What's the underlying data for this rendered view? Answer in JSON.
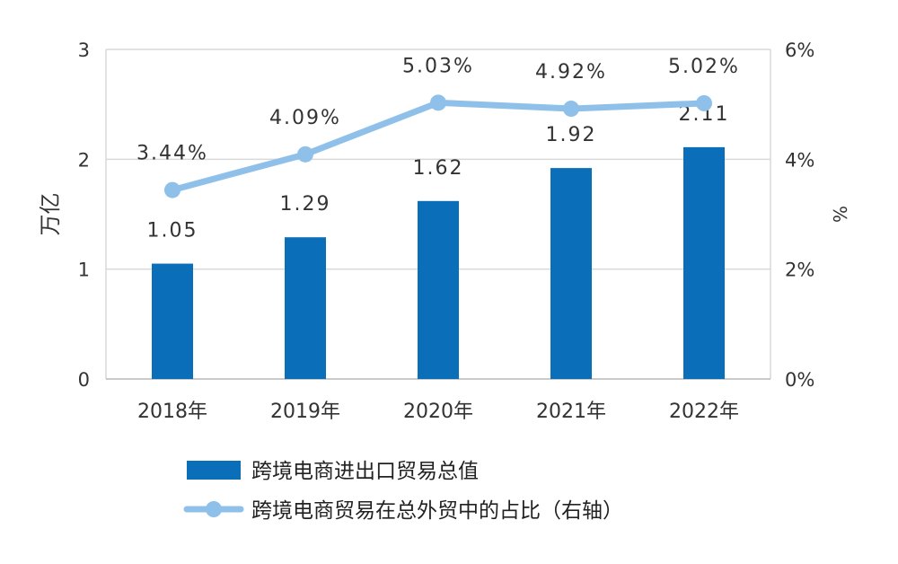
{
  "chart_data": {
    "type": "bar",
    "categories": [
      "2018年",
      "2019年",
      "2020年",
      "2021年",
      "2022年"
    ],
    "ylabel": "万亿",
    "y2label": "%",
    "ylim": [
      0,
      3
    ],
    "y2lim": [
      0,
      6
    ],
    "yticks": [
      "0",
      "1",
      "2",
      "3"
    ],
    "y2ticks": [
      "0%",
      "2%",
      "4%",
      "6%"
    ],
    "grid": true,
    "legend_position": "bottom",
    "series": [
      {
        "name": "跨境电商进出口贸易总值",
        "type": "bar",
        "axis": "left",
        "color": "#0a6fb8",
        "values": [
          1.05,
          1.29,
          1.62,
          1.92,
          2.11
        ],
        "labels": [
          "1.05",
          "1.29",
          "1.62",
          "1.92",
          "2.11"
        ]
      },
      {
        "name": "跨境电商贸易在总外贸中的占比（右轴）",
        "type": "line",
        "axis": "right",
        "color": "#8fc0ea",
        "values": [
          3.44,
          4.09,
          5.03,
          4.92,
          5.02
        ],
        "labels": [
          "3.44%",
          "4.09%",
          "5.03%",
          "4.92%",
          "5.02%"
        ]
      }
    ]
  }
}
